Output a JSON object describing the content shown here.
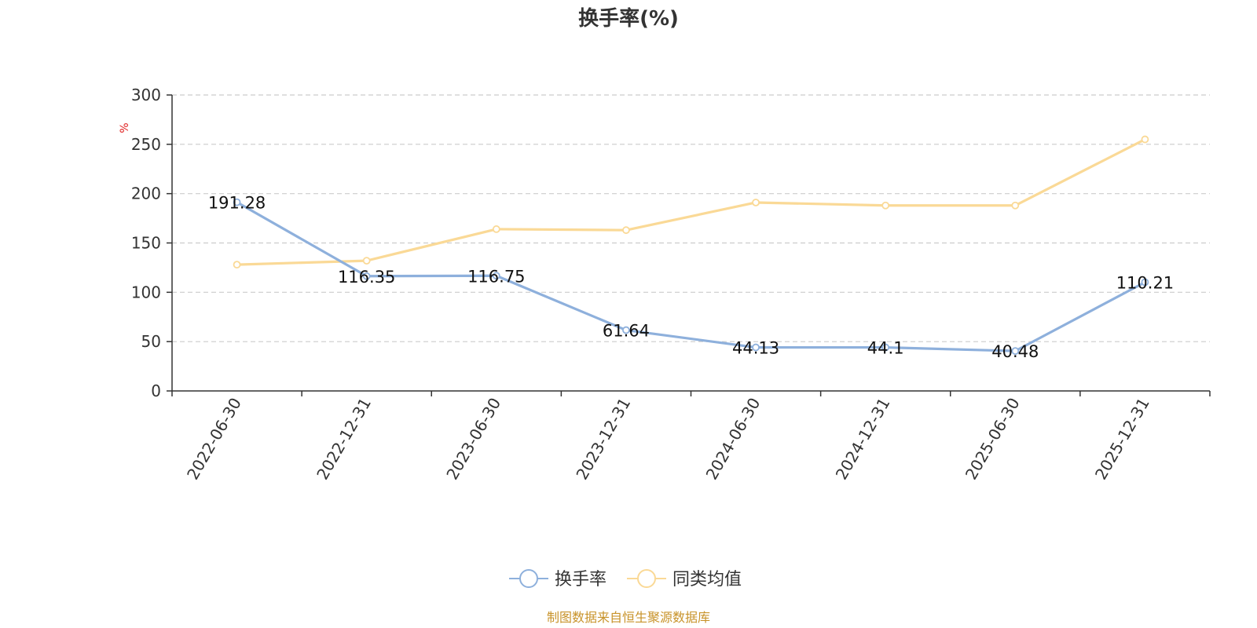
{
  "chart_data": {
    "type": "line",
    "title": "换手率(%)",
    "ylabel": "%",
    "ylim": [
      0,
      300
    ],
    "yticks": [
      0,
      50,
      100,
      150,
      200,
      250,
      300
    ],
    "grid": true,
    "legend_position": "bottom-center",
    "categories": [
      "2022-06-30",
      "2022-12-31",
      "2023-06-30",
      "2023-12-31",
      "2024-06-30",
      "2024-12-31",
      "2025-06-30",
      "2025-12-31"
    ],
    "series": [
      {
        "name": "换手率",
        "values": [
          191.28,
          116.35,
          116.75,
          61.64,
          44.13,
          44.1,
          40.48,
          110.21
        ],
        "labels": [
          "191.28",
          "116.35",
          "116.75",
          "61.64",
          "44.13",
          "44.1",
          "40.48",
          "110.21"
        ],
        "show_labels": true,
        "color": "#8eb0dc"
      },
      {
        "name": "同类均值",
        "values": [
          128,
          132,
          164,
          163,
          191,
          188,
          188,
          255
        ],
        "show_labels": false,
        "color": "#fad996"
      }
    ]
  },
  "source_note": "制图数据来自恒生聚源数据库",
  "colors": {
    "axis": "#333333",
    "grid": "#cccccc",
    "unit": "#e02020",
    "source": "#c8932a"
  }
}
